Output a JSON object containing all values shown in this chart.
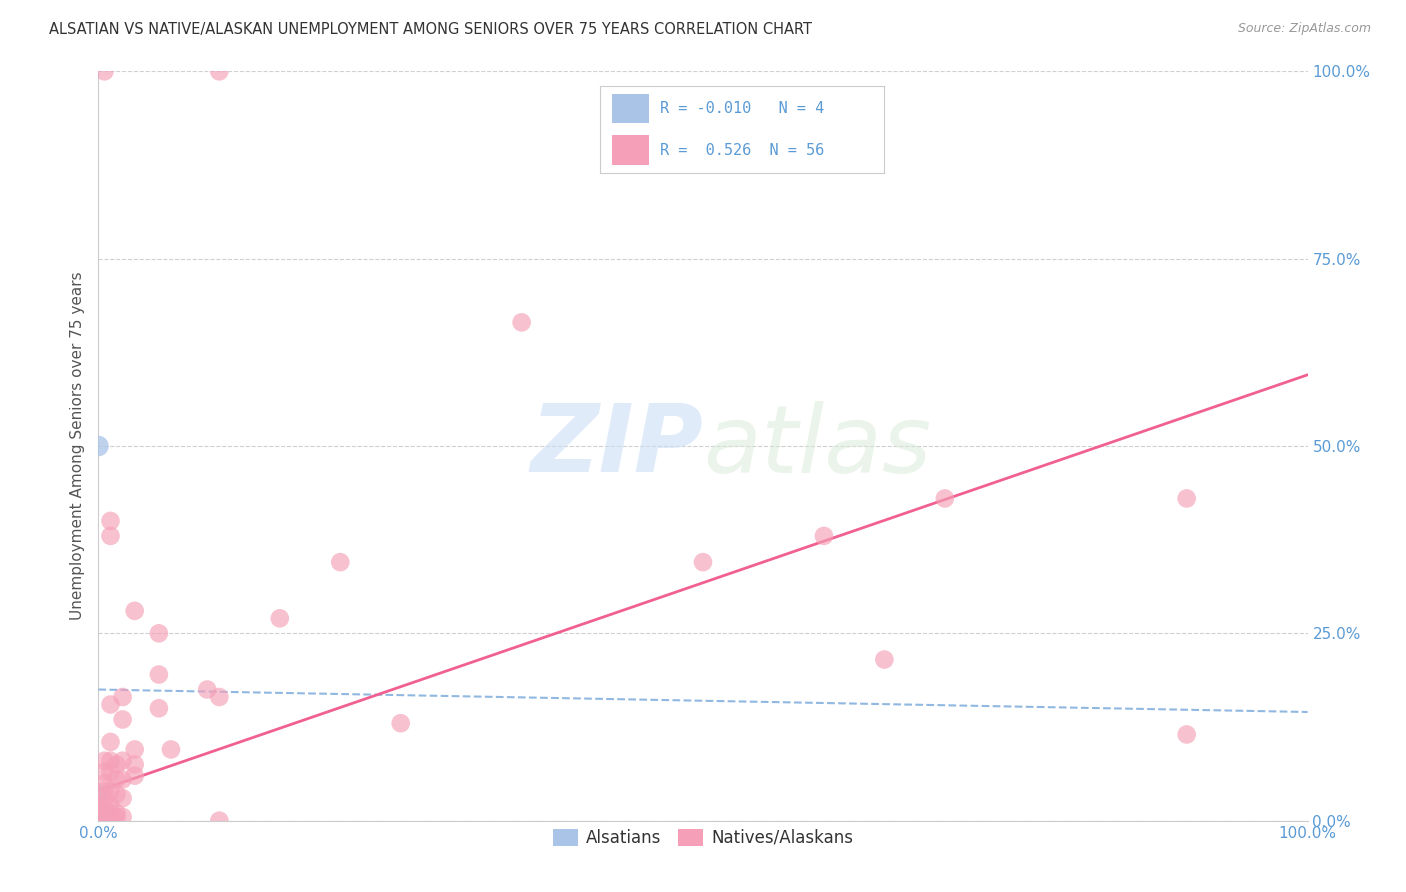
{
  "title": "ALSATIAN VS NATIVE/ALASKAN UNEMPLOYMENT AMONG SENIORS OVER 75 YEARS CORRELATION CHART",
  "source": "Source: ZipAtlas.com",
  "ylabel": "Unemployment Among Seniors over 75 years",
  "xlim": [
    0.0,
    1.0
  ],
  "ylim": [
    0.0,
    1.0
  ],
  "ytick_positions": [
    0.0,
    0.25,
    0.5,
    0.75,
    1.0
  ],
  "ytick_labels": [
    "0.0%",
    "25.0%",
    "50.0%",
    "75.0%",
    "100.0%"
  ],
  "background_color": "#ffffff",
  "grid_color": "#d0d0d0",
  "watermark_zip": "ZIP",
  "watermark_atlas": "atlas",
  "alsatian_color": "#aac4e8",
  "native_color": "#f5a0b8",
  "alsatian_R": "-0.010",
  "alsatian_N": "4",
  "native_R": "0.526",
  "native_N": "56",
  "alsatian_line_color": "#90b8e0",
  "native_line_color": "#f06090",
  "alsatian_line": [
    [
      0.0,
      0.175
    ],
    [
      1.0,
      0.145
    ]
  ],
  "native_line": [
    [
      0.0,
      0.04
    ],
    [
      1.0,
      0.595
    ]
  ],
  "alsatian_points": [
    [
      0.0,
      0.5
    ],
    [
      0.0,
      0.035
    ],
    [
      0.0,
      0.02
    ],
    [
      0.0,
      0.005
    ]
  ],
  "native_points": [
    [
      0.0,
      0.005
    ],
    [
      0.0,
      0.01
    ],
    [
      0.0,
      0.015
    ],
    [
      0.0,
      0.02
    ],
    [
      0.005,
      0.005
    ],
    [
      0.005,
      0.01
    ],
    [
      0.005,
      0.02
    ],
    [
      0.005,
      0.03
    ],
    [
      0.005,
      0.04
    ],
    [
      0.005,
      0.05
    ],
    [
      0.005,
      0.065
    ],
    [
      0.005,
      0.08
    ],
    [
      0.005,
      1.0
    ],
    [
      0.01,
      0.005
    ],
    [
      0.01,
      0.01
    ],
    [
      0.01,
      0.02
    ],
    [
      0.01,
      0.04
    ],
    [
      0.01,
      0.065
    ],
    [
      0.01,
      0.08
    ],
    [
      0.01,
      0.105
    ],
    [
      0.01,
      0.155
    ],
    [
      0.01,
      0.38
    ],
    [
      0.01,
      0.4
    ],
    [
      0.015,
      0.005
    ],
    [
      0.015,
      0.01
    ],
    [
      0.015,
      0.035
    ],
    [
      0.015,
      0.055
    ],
    [
      0.015,
      0.075
    ],
    [
      0.02,
      0.005
    ],
    [
      0.02,
      0.03
    ],
    [
      0.02,
      0.055
    ],
    [
      0.02,
      0.08
    ],
    [
      0.02,
      0.135
    ],
    [
      0.02,
      0.165
    ],
    [
      0.03,
      0.06
    ],
    [
      0.03,
      0.075
    ],
    [
      0.03,
      0.095
    ],
    [
      0.03,
      0.28
    ],
    [
      0.05,
      0.15
    ],
    [
      0.05,
      0.195
    ],
    [
      0.05,
      0.25
    ],
    [
      0.06,
      0.095
    ],
    [
      0.09,
      0.175
    ],
    [
      0.1,
      0.0
    ],
    [
      0.1,
      0.165
    ],
    [
      0.1,
      1.0
    ],
    [
      0.15,
      0.27
    ],
    [
      0.2,
      0.345
    ],
    [
      0.25,
      0.13
    ],
    [
      0.35,
      0.665
    ],
    [
      0.5,
      0.345
    ],
    [
      0.6,
      0.38
    ],
    [
      0.65,
      0.215
    ],
    [
      0.7,
      0.43
    ],
    [
      0.9,
      0.115
    ],
    [
      0.9,
      0.43
    ]
  ]
}
